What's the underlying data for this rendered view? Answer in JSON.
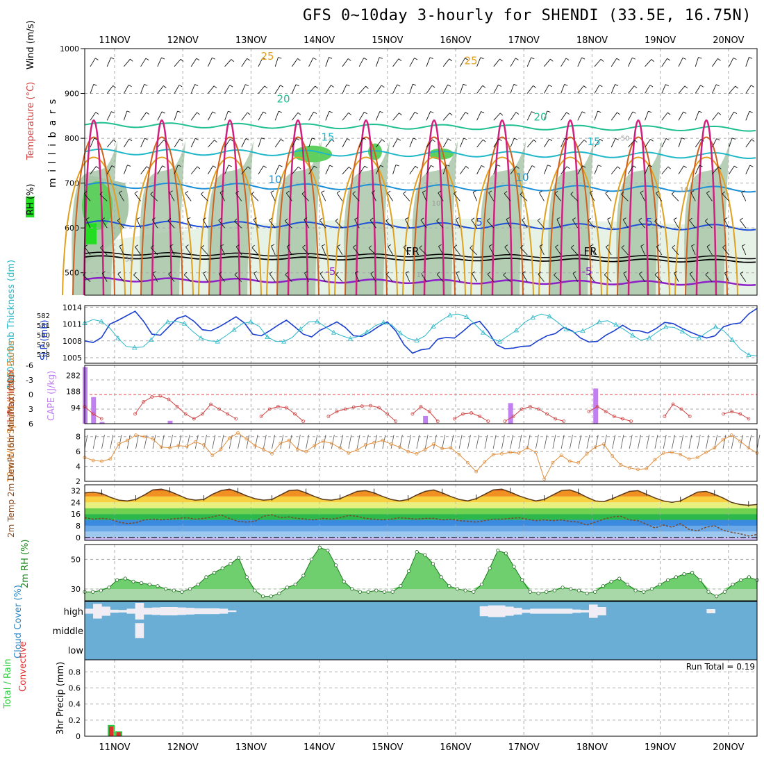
{
  "title": "GFS 0~10day 3-hourly for SHENDI (33.5E, 16.75N)",
  "colors": {
    "rh_light": "#e6f2e6",
    "rh_mid": "#a9c7a9",
    "rh_high": "#5fcf5f",
    "rh_sat": "#22dd22",
    "t_m5": "#8c1fc8",
    "t_fr": "#000000",
    "t_5": "#1f4fd8",
    "t_10": "#1b8fd8",
    "t_15": "#1fb8c8",
    "t_20": "#1fbf8f",
    "t_25": "#e0a020",
    "t_30": "#d06020",
    "t_35": "#d0207f",
    "slp": "#1a3fcf",
    "thick": "#2ab8c8",
    "li": "#d04040",
    "cape": "#c080f0",
    "wind": "#e09040",
    "temp2m": "#8b4513",
    "dew2m": "#8b4513",
    "rh2m_fill": "#6fcf6f",
    "cloud_bg": "#6aaed6",
    "cloud_fill": "#f0eef4",
    "precip_total": "#2ecc40",
    "precip_conv": "#e03030"
  },
  "chart_data": [
    {
      "type": "heatmap",
      "name": "upper-air cross section",
      "ylabel_parts": {
        "rh": "RH (%)",
        "temp": "Temperature (°C)",
        "wind": "Wind (m/s)",
        "pres": "m i l l i b a r s"
      },
      "y_ticks": [
        "500",
        "600",
        "700",
        "800",
        "900",
        "1000"
      ],
      "ylim": [
        450,
        1000
      ],
      "x_ticks": [
        "11NOV",
        "12NOV",
        "13NOV",
        "14NOV",
        "15NOV",
        "16NOV",
        "17NOV",
        "18NOV",
        "19NOV",
        "20NOV"
      ],
      "contour_labels": [
        "-5",
        "FR",
        "5",
        "10",
        "15",
        "20",
        "25",
        "-5",
        "FR",
        "5",
        "10",
        "15",
        "20",
        "25",
        "10",
        "10",
        "30",
        "10",
        "50"
      ],
      "isotherm_levels_mb": {
        "m5": 485,
        "fr": 535,
        "5": 610,
        "10": 695,
        "15": 770,
        "20": 830
      }
    },
    {
      "type": "line",
      "name": "thickness and SLP",
      "ylabel_thick": "1000-500mb Thickness (dm)",
      "ylabel_slp": "SLP (mb)",
      "thick_ticks": [
        "582",
        "581",
        "580",
        "579",
        "578"
      ],
      "slp_ticks": [
        "1014",
        "1011",
        "1008",
        "1005"
      ],
      "slp_ylim": [
        1004,
        1014.3
      ],
      "slp": [
        1008.0,
        1007.7,
        1008.6,
        1011.0,
        1011.7,
        1012.5,
        1013.3,
        1011.5,
        1009.2,
        1009.0,
        1010.5,
        1012.0,
        1012.5,
        1011.5,
        1010.0,
        1009.8,
        1010.5,
        1011.4,
        1012.3,
        1011.2,
        1009.2,
        1008.9,
        1009.8,
        1010.8,
        1011.7,
        1010.5,
        1009.2,
        1008.7,
        1009.9,
        1010.6,
        1011.4,
        1010.4,
        1008.9,
        1008.8,
        1009.6,
        1010.6,
        1011.4,
        1009.8,
        1007.3,
        1005.8,
        1006.4,
        1006.6,
        1008.3,
        1008.6,
        1008.5,
        1009.7,
        1011.0,
        1011.5,
        1009.7,
        1007.3,
        1006.6,
        1006.7,
        1007.0,
        1007.1,
        1008.1,
        1008.9,
        1009.3,
        1010.4,
        1009.8,
        1008.5,
        1007.8,
        1007.9,
        1009.0,
        1009.8,
        1010.8,
        1009.9,
        1009.8,
        1009.4,
        1010.2,
        1011.3,
        1011.1,
        1010.3,
        1009.6,
        1009.0,
        1008.5,
        1008.9,
        1010.5,
        1011.0,
        1011.2,
        1012.8,
        1013.8
      ],
      "thick": [
        1011.2,
        1011.8,
        1011.5,
        1010.3,
        1008.5,
        1007.0,
        1006.8,
        1006.9,
        1008.2,
        1010.0,
        1011.4,
        1011.5,
        1011.1,
        1009.7,
        1008.5,
        1008.0,
        1007.9,
        1008.9,
        1010.0,
        1011.1,
        1011.4,
        1010.6,
        1008.7,
        1007.9,
        1007.9,
        1008.6,
        1010.1,
        1011.4,
        1011.5,
        1010.5,
        1009.5,
        1008.9,
        1008.4,
        1008.8,
        1009.6,
        1010.7,
        1011.3,
        1010.8,
        1009.4,
        1008.4,
        1008.1,
        1008.9,
        1010.6,
        1011.7,
        1012.6,
        1012.8,
        1012.3,
        1011.0,
        1009.5,
        1008.4,
        1007.9,
        1008.9,
        1009.9,
        1011.3,
        1012.2,
        1012.8,
        1012.4,
        1011.3,
        1010.1,
        1009.5,
        1009.8,
        1010.5,
        1011.4,
        1011.6,
        1010.9,
        1010.0,
        1009.0,
        1008.1,
        1008.5,
        1009.6,
        1010.5,
        1010.4,
        1009.7,
        1008.7,
        1008.5,
        1009.6,
        1010.5,
        1009.8,
        1008.2,
        1006.5,
        1005.5,
        1005.3
      ]
    },
    {
      "type": "bar",
      "name": "lifted index and CAPE",
      "ylabel_li": "Lifted Index",
      "ylabel_cape": "CAPE (J/kg)",
      "li_ticks": [
        "-6",
        "-3",
        "0",
        "3",
        "6"
      ],
      "cape_ticks": [
        "282",
        "188",
        "94"
      ],
      "cape_ylim": [
        0,
        340
      ],
      "li_ylim": [
        -6,
        6
      ],
      "cape": [
        330,
        155,
        10,
        0,
        0,
        0,
        0,
        0,
        0,
        0,
        17,
        0,
        0,
        0,
        0,
        0,
        0,
        0,
        0,
        0,
        0,
        0,
        0,
        0,
        0,
        0,
        0,
        0,
        0,
        0,
        0,
        0,
        0,
        0,
        0,
        0,
        0,
        0,
        0,
        0,
        45,
        0,
        0,
        0,
        0,
        0,
        0,
        0,
        0,
        0,
        120,
        0,
        0,
        0,
        0,
        0,
        0,
        0,
        0,
        0,
        205,
        0,
        0,
        0,
        0,
        0,
        0,
        0,
        0,
        0,
        0,
        0,
        0,
        0,
        0,
        0,
        0,
        0,
        0,
        0
      ],
      "li": [
        2.5,
        4.0,
        5.0,
        6.0,
        6.5,
        6.0,
        4.0,
        1.5,
        0.5,
        0.3,
        1.0,
        2.5,
        4.0,
        5.0,
        4.0,
        2.0,
        3.0,
        4.0,
        5.0,
        6.0,
        6.0,
        4.5,
        3.0,
        2.5,
        2.7,
        4.0,
        5.5,
        6.5,
        6.0,
        4.5,
        3.5,
        3.0,
        2.6,
        2.4,
        2.3,
        2.7,
        4.0,
        5.5,
        6.0,
        4.0,
        2.5,
        3.5,
        5.5,
        7.0,
        5.0,
        4.0,
        3.8,
        4.5,
        5.5,
        6.5,
        5.5,
        4.5,
        3.0,
        2.5,
        3.0,
        4.0,
        5.0,
        5.5,
        6.0,
        6.5,
        3.5,
        2.5,
        3.5,
        4.5,
        5.0,
        5.5,
        6.0,
        6.5,
        6.5,
        4.5,
        2.0,
        3.0,
        4.5,
        6.0,
        6.5,
        6.0,
        4.0,
        3.5,
        4.0,
        5.0,
        6.5
      ]
    },
    {
      "type": "line",
      "name": "10m wind",
      "ylabel": "10m Wind Speed (m/s) & Barbs",
      "ticks": [
        "8",
        "6",
        "4",
        "2"
      ],
      "ylim": [
        2,
        9
      ],
      "values": [
        5.2,
        4.8,
        4.7,
        5.0,
        7.0,
        7.5,
        8.2,
        8.0,
        7.7,
        6.6,
        6.5,
        6.8,
        6.7,
        7.3,
        6.9,
        5.5,
        6.3,
        7.8,
        8.5,
        7.7,
        6.8,
        6.3,
        5.7,
        7.1,
        7.5,
        6.3,
        6.0,
        6.8,
        7.4,
        7.1,
        6.5,
        5.8,
        6.2,
        6.9,
        7.2,
        7.5,
        7.0,
        6.6,
        6.0,
        5.7,
        6.3,
        7.0,
        6.4,
        6.5,
        5.6,
        4.5,
        3.3,
        4.6,
        5.6,
        5.7,
        5.9,
        5.8,
        6.5,
        5.9,
        2.3,
        4.5,
        5.5,
        4.7,
        4.5,
        5.7,
        6.6,
        7.0,
        5.4,
        4.2,
        3.8,
        3.6,
        3.7,
        4.9,
        5.8,
        5.9,
        5.6,
        5.0,
        5.2,
        5.9,
        6.5,
        7.6,
        8.2,
        7.4,
        6.5,
        5.8
      ]
    },
    {
      "type": "area",
      "name": "2m temperature and dewpoint",
      "ylabel": "2m Temp 2m DewPt (6hr Min/Max) (°C)",
      "ticks": [
        "32",
        "24",
        "16",
        "8",
        "0"
      ],
      "ylim": [
        -2,
        36
      ],
      "temp": [
        30.5,
        31.0,
        30.0,
        27.5,
        25.5,
        25.0,
        26.0,
        29.0,
        32.5,
        33.0,
        31.5,
        29.0,
        26.5,
        25.5,
        26.0,
        29.5,
        32.0,
        33.0,
        31.0,
        28.5,
        26.5,
        25.5,
        26.0,
        29.0,
        32.0,
        32.5,
        30.5,
        28.0,
        26.0,
        25.5,
        26.5,
        29.0,
        31.5,
        32.0,
        30.5,
        28.0,
        26.0,
        25.0,
        26.0,
        29.0,
        31.5,
        32.5,
        30.5,
        28.0,
        26.0,
        25.0,
        26.5,
        29.5,
        32.5,
        33.0,
        31.0,
        28.5,
        26.5,
        25.0,
        26.0,
        29.0,
        32.0,
        32.5,
        30.5,
        27.5,
        25.0,
        24.5,
        26.5,
        29.0,
        31.5,
        32.0,
        29.5,
        27.0,
        25.0,
        24.0,
        25.0,
        28.0,
        31.0,
        31.5,
        29.5,
        27.0,
        24.0,
        22.5,
        22.0,
        22.5
      ],
      "dew": [
        13.5,
        12.5,
        13.0,
        12.5,
        10.5,
        9.5,
        10.0,
        12.0,
        12.5,
        12.0,
        12.5,
        13.0,
        13.5,
        12.5,
        13.0,
        14.0,
        15.5,
        13.0,
        11.0,
        10.5,
        11.0,
        14.5,
        15.5,
        13.5,
        14.0,
        13.0,
        12.5,
        12.0,
        13.0,
        12.5,
        13.5,
        15.0,
        14.5,
        13.0,
        12.5,
        12.0,
        12.5,
        13.5,
        13.0,
        12.5,
        13.0,
        13.0,
        12.0,
        12.5,
        11.5,
        11.0,
        10.5,
        11.5,
        12.5,
        12.5,
        13.0,
        13.5,
        12.5,
        11.5,
        12.0,
        11.5,
        12.0,
        11.0,
        10.5,
        8.5,
        10.5,
        12.5,
        14.0,
        14.5,
        12.0,
        11.5,
        9.0,
        6.5,
        8.5,
        7.0,
        9.5,
        5.5,
        4.5,
        7.0,
        8.0,
        5.0,
        3.5,
        2.5,
        1.0,
        2.0
      ]
    },
    {
      "type": "area",
      "name": "2m relative humidity",
      "ylabel": "2m RH (%)",
      "ticks": [
        "50",
        "30"
      ],
      "ylim": [
        22,
        60
      ],
      "values": [
        28,
        28,
        29,
        31,
        36,
        37,
        35,
        34,
        33,
        32,
        30,
        29,
        28,
        30,
        33,
        38,
        41,
        44,
        47,
        51,
        38,
        29,
        25,
        25,
        27,
        31,
        33,
        39,
        50,
        58,
        56,
        46,
        35,
        30,
        28,
        28,
        29,
        28,
        28,
        32,
        42,
        55,
        53,
        47,
        38,
        32,
        30,
        29,
        28,
        33,
        44,
        56,
        54,
        45,
        36,
        28,
        27,
        28,
        29,
        31,
        30,
        29,
        27,
        28,
        32,
        35,
        37,
        33,
        29,
        28,
        30,
        33,
        36,
        38,
        40,
        41,
        36,
        28,
        25,
        28,
        33,
        36,
        38,
        36
      ]
    },
    {
      "type": "area",
      "name": "cloud cover",
      "ylabel": "Cloud Cover (%)",
      "level_labels": [
        "high",
        "middle",
        "low"
      ],
      "high": [
        30,
        88,
        55,
        18,
        15,
        30,
        100,
        40,
        45,
        50,
        50,
        45,
        40,
        35,
        35,
        35,
        30,
        10,
        0,
        0,
        0,
        0,
        0,
        0,
        0,
        0,
        0,
        0,
        0,
        0,
        0,
        0,
        0,
        0,
        0,
        0,
        0,
        0,
        0,
        0,
        0,
        0,
        0,
        0,
        0,
        0,
        0,
        60,
        70,
        70,
        55,
        40,
        20,
        30,
        30,
        30,
        30,
        30,
        20,
        15,
        80,
        50,
        0,
        0,
        0,
        0,
        0,
        0,
        0,
        0,
        0,
        0,
        0,
        0,
        25,
        0,
        0,
        0,
        0,
        0
      ],
      "middle": [
        0,
        0,
        0,
        0,
        0,
        0,
        90,
        0,
        0,
        0,
        0,
        0,
        0,
        0,
        0,
        0,
        0,
        0,
        0,
        0,
        0,
        0,
        0,
        0,
        0,
        0,
        0,
        0,
        0,
        0,
        0,
        0,
        0,
        0,
        0,
        0,
        0,
        0,
        0,
        0,
        0,
        0,
        0,
        0,
        0,
        0,
        0,
        0,
        0,
        0,
        0,
        0,
        0,
        0,
        0,
        0,
        0,
        0,
        0,
        0,
        0,
        0,
        0,
        0,
        0,
        0,
        0,
        0,
        0,
        0,
        0,
        0,
        0,
        0,
        0,
        0,
        0,
        0,
        0,
        0
      ]
    },
    {
      "type": "bar",
      "name": "3hr precipitation",
      "ylabel_total": "Total / Rain",
      "ylabel_conv": "Convective",
      "ylabel": "3hr Precip (mm)",
      "run_total": "Run Total = 0.19",
      "ticks": [
        "0.8",
        "0.6",
        "0.4",
        "0.2",
        "0"
      ],
      "ylim": [
        0,
        0.95
      ],
      "total": [
        0,
        0,
        0,
        0.14,
        0.06,
        0,
        0,
        0
      ],
      "conv": [
        0,
        0,
        0,
        0.12,
        0.05,
        0,
        0,
        0
      ]
    }
  ]
}
